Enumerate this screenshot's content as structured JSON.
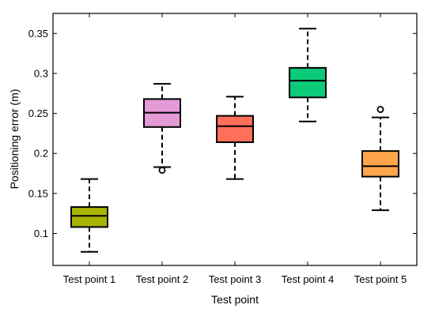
{
  "chart_data": {
    "type": "box",
    "xlabel": "Test point",
    "ylabel": "Positioning error (m)",
    "ylim": [
      0.06,
      0.375
    ],
    "yticks": [
      0.1,
      0.15,
      0.2,
      0.25,
      0.3,
      0.35
    ],
    "ytick_labels": [
      "0.1",
      "0.15",
      "0.2",
      "0.25",
      "0.3",
      "0.35"
    ],
    "grid": false,
    "categories": [
      "Test point 1",
      "Test point 2",
      "Test point 3",
      "Test point 4",
      "Test point 5"
    ],
    "boxes": [
      {
        "whisker_low": 0.077,
        "q1": 0.108,
        "median": 0.122,
        "q3": 0.133,
        "whisker_high": 0.168,
        "outliers": [],
        "color": "#A8B400"
      },
      {
        "whisker_low": 0.183,
        "q1": 0.233,
        "median": 0.251,
        "q3": 0.268,
        "whisker_high": 0.287,
        "outliers": [
          0.179
        ],
        "color": "#E39AD6"
      },
      {
        "whisker_low": 0.168,
        "q1": 0.214,
        "median": 0.234,
        "q3": 0.247,
        "whisker_high": 0.271,
        "outliers": [],
        "color": "#FF6F59"
      },
      {
        "whisker_low": 0.24,
        "q1": 0.27,
        "median": 0.291,
        "q3": 0.307,
        "whisker_high": 0.356,
        "outliers": [],
        "color": "#0CCB78"
      },
      {
        "whisker_low": 0.129,
        "q1": 0.171,
        "median": 0.184,
        "q3": 0.203,
        "whisker_high": 0.245,
        "outliers": [
          0.255
        ],
        "color": "#FFA64D"
      }
    ]
  }
}
